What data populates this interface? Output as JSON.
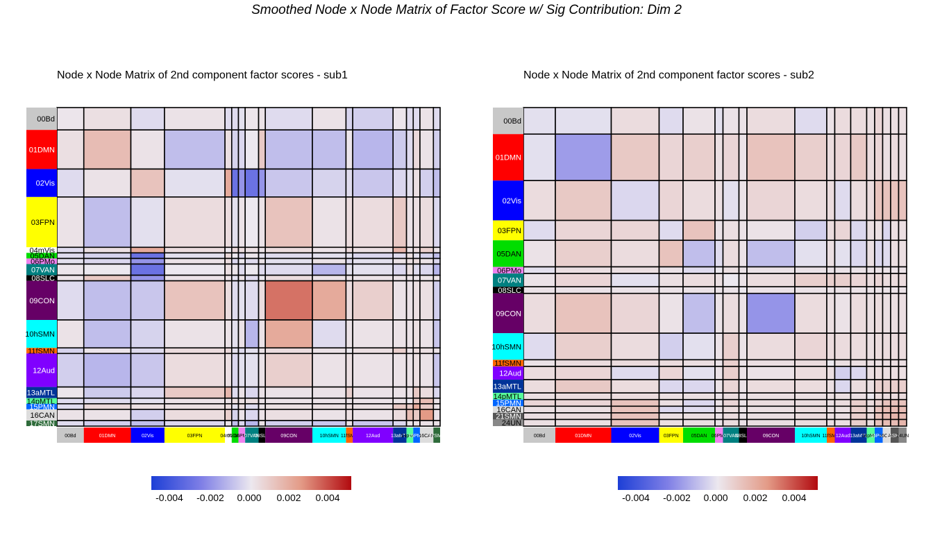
{
  "title": "Smoothed Node x Node Matrix of Factor Score w/ Sig Contribution: Dim 2",
  "colorbar": {
    "ticks": [
      "-0.004",
      "-0.002",
      "0.000",
      "0.002",
      "0.004"
    ],
    "tick_values": [
      -0.004,
      -0.002,
      0.0,
      0.002,
      0.004
    ],
    "range": [
      -0.005,
      0.005
    ],
    "colors": [
      "#1d3fd6",
      "#7f7fe6",
      "#ece8ef",
      "#e39a86",
      "#b20a0f"
    ]
  },
  "chart_data": [
    {
      "type": "heatmap",
      "title": "Node x Node Matrix of 2nd component factor scores - sub1",
      "communities": [
        {
          "label": "00Bd",
          "color": "#c8c8c8",
          "size": 4
        },
        {
          "label": "01DMN",
          "color": "#ff0000",
          "size": 7
        },
        {
          "label": "02Vis",
          "color": "#0000ff",
          "size": 5
        },
        {
          "label": "03FPN",
          "color": "#ffff00",
          "size": 9
        },
        {
          "label": "04mVis",
          "color": "#ffffff",
          "size": 1
        },
        {
          "label": "05DAN",
          "color": "#00dd00",
          "size": 1
        },
        {
          "label": "06PMo",
          "color": "#ee82ee",
          "size": 1
        },
        {
          "label": "07VAN",
          "color": "#008080",
          "size": 2
        },
        {
          "label": "08SLC",
          "color": "#000000",
          "size": 1
        },
        {
          "label": "09CON",
          "color": "#660066",
          "size": 7
        },
        {
          "label": "10hSMN",
          "color": "#00ffff",
          "size": 5
        },
        {
          "label": "11fSMN",
          "color": "#ff6600",
          "size": 1
        },
        {
          "label": "12Aud",
          "color": "#8000ff",
          "size": 6
        },
        {
          "label": "13aMTL",
          "color": "#003399",
          "size": 2
        },
        {
          "label": "14pMTL",
          "color": "#55ff99",
          "size": 1
        },
        {
          "label": "15PMN",
          "color": "#0066ff",
          "size": 1
        },
        {
          "label": "16CAN",
          "color": "#dddddd",
          "size": 2
        },
        {
          "label": "17SMN",
          "color": "#2e6b3a",
          "size": 1
        }
      ],
      "x_labels": [
        "00Bd",
        "01DMN",
        "02Vis",
        "03FPN",
        "04mVis",
        "05DAN",
        "06PMo",
        "07VAN",
        "08SLC",
        "09CON",
        "10hSMN",
        "11fSMN",
        "12Aud",
        "13aMTL",
        "14pMTL",
        "15PMN",
        "16CAN",
        "17SMN"
      ],
      "y_labels": [
        "00Bd",
        "01DMN",
        "02Vis",
        "03FPN",
        "04mVis",
        "05DAN",
        "06PMo",
        "07VAN",
        "08SLC",
        "09CON",
        "10hSMN",
        "11fSMN",
        "12Aud",
        "13aMTL",
        "14pMTL",
        "15PMN",
        "16CAN",
        "17SMN"
      ],
      "values": [
        [
          0.0001,
          0.0003,
          -0.0003,
          0.0002,
          -0.0003,
          -0.0003,
          -0.0002,
          0.0001,
          0.0002,
          -0.0003,
          0.0002,
          -0.0005,
          -0.0006,
          0.0001,
          -0.0003,
          -0.0003,
          0.0002,
          -0.0003
        ],
        [
          0.0003,
          0.0014,
          0.0002,
          -0.001,
          0.0003,
          -0.0005,
          -0.0004,
          0.0,
          0.001,
          -0.001,
          -0.001,
          0.0001,
          -0.0012,
          -0.0007,
          -0.0003,
          0.0005,
          0.0002,
          -0.0006
        ],
        [
          -0.0003,
          0.0002,
          0.0012,
          -0.0002,
          0.002,
          -0.003,
          -0.002,
          -0.003,
          -0.002,
          -0.0008,
          -0.0005,
          -0.0003,
          -0.0008,
          -0.0004,
          -0.0002,
          0.0003,
          -0.0006,
          -0.001
        ],
        [
          0.0002,
          -0.001,
          -0.0002,
          0.0004,
          0.0004,
          -0.0002,
          0.0002,
          0.0,
          0.0002,
          0.0012,
          0.0002,
          0.0004,
          0.0004,
          0.001,
          0.0002,
          0.0003,
          0.0004,
          -0.0004
        ],
        [
          -0.0003,
          0.0003,
          0.002,
          0.0004,
          0.0,
          0.0005,
          0.0004,
          0.0003,
          0.0002,
          0.0004,
          0.0002,
          0.0005,
          0.0003,
          0.0016,
          0.0002,
          0.0004,
          0.0008,
          0.0002
        ],
        [
          -0.0003,
          -0.0005,
          -0.003,
          -0.0002,
          0.0005,
          0.0,
          -0.0004,
          0.0001,
          -0.0002,
          -0.0003,
          -0.0002,
          -0.0002,
          -0.0004,
          -0.0003,
          0.0003,
          -0.0002,
          -0.0005,
          -0.001
        ],
        [
          -0.0002,
          -0.0004,
          -0.002,
          0.0002,
          0.0004,
          -0.0004,
          0.0,
          -0.0003,
          0.0002,
          -0.0002,
          0.0002,
          -0.0003,
          -0.0002,
          0.0002,
          0.0003,
          0.0004,
          0.0002,
          -0.0004
        ],
        [
          0.0001,
          0.0,
          -0.003,
          0.0,
          0.0003,
          0.0001,
          -0.0003,
          0.0,
          -0.0003,
          -0.0003,
          -0.0012,
          -0.0002,
          -0.0002,
          -0.0004,
          0.0003,
          -0.0003,
          -0.0004,
          -0.0012
        ],
        [
          0.0002,
          0.001,
          -0.002,
          0.0002,
          0.0002,
          -0.0002,
          0.0002,
          -0.0003,
          0.0,
          0.0004,
          0.0002,
          0.0002,
          0.0002,
          0.0002,
          0.0002,
          0.0002,
          0.0002,
          0.0002
        ],
        [
          -0.0003,
          -0.001,
          -0.0008,
          0.0012,
          0.0004,
          -0.0003,
          -0.0002,
          -0.0003,
          0.0004,
          0.0032,
          0.002,
          0.0004,
          0.0008,
          0.0002,
          0.0002,
          0.0003,
          0.0003,
          -0.0006
        ],
        [
          0.0002,
          -0.001,
          -0.0005,
          0.0002,
          0.0002,
          -0.0002,
          0.0002,
          -0.0012,
          0.0002,
          0.002,
          -0.0003,
          0.0002,
          0.0002,
          0.0002,
          0.0002,
          0.0003,
          0.0002,
          -0.0008
        ],
        [
          -0.0005,
          0.0001,
          -0.0003,
          0.0004,
          0.0005,
          -0.0002,
          -0.0003,
          -0.0002,
          0.0002,
          0.0004,
          0.0002,
          0.0,
          0.0003,
          0.0008,
          0.0002,
          0.0004,
          0.0003,
          0.0002
        ],
        [
          -0.0006,
          -0.0012,
          -0.0008,
          0.0004,
          0.0003,
          -0.0004,
          -0.0002,
          -0.0002,
          0.0002,
          0.0008,
          0.0002,
          0.0003,
          0.0002,
          0.0002,
          0.0002,
          0.0003,
          0.0002,
          -0.0008
        ],
        [
          0.0001,
          -0.0007,
          -0.0004,
          0.001,
          0.0016,
          -0.0003,
          0.0002,
          -0.0004,
          0.0002,
          0.0002,
          0.0002,
          0.0008,
          0.0002,
          0.0002,
          0.0002,
          0.001,
          0.0004,
          -0.0004
        ],
        [
          -0.0003,
          -0.0003,
          -0.0002,
          0.0002,
          0.0002,
          0.0003,
          0.0003,
          0.0003,
          0.0002,
          0.0002,
          0.0002,
          0.0002,
          0.0002,
          0.0002,
          0.0,
          0.001,
          0.0014,
          0.0002
        ],
        [
          -0.0003,
          0.0005,
          0.0003,
          0.0003,
          0.0004,
          -0.0002,
          0.0004,
          -0.0003,
          0.0002,
          0.0003,
          0.0003,
          0.0004,
          0.0003,
          0.001,
          0.001,
          0.002,
          0.001,
          0.0002
        ],
        [
          0.0002,
          0.0002,
          -0.0006,
          0.0004,
          0.0008,
          -0.0005,
          0.0002,
          -0.0004,
          0.0002,
          0.0003,
          0.0002,
          0.0003,
          0.0002,
          0.0004,
          0.0014,
          0.001,
          0.0025,
          0.0002
        ],
        [
          -0.0003,
          -0.0006,
          -0.001,
          -0.0004,
          0.0002,
          -0.001,
          -0.0004,
          -0.0012,
          0.0002,
          -0.0006,
          -0.0008,
          0.0002,
          -0.0008,
          -0.0004,
          0.0002,
          0.0002,
          0.0002,
          0.0002
        ]
      ]
    },
    {
      "type": "heatmap",
      "title": "Node x Node Matrix of 2nd component factor scores - sub2",
      "communities": [
        {
          "label": "00Bd",
          "color": "#c8c8c8",
          "size": 4
        },
        {
          "label": "01DMN",
          "color": "#ff0000",
          "size": 7
        },
        {
          "label": "02Vis",
          "color": "#0000ff",
          "size": 6
        },
        {
          "label": "03FPN",
          "color": "#ffff00",
          "size": 3
        },
        {
          "label": "05DAN",
          "color": "#00dd00",
          "size": 4
        },
        {
          "label": "06PMo",
          "color": "#ee82ee",
          "size": 1
        },
        {
          "label": "07VAN",
          "color": "#008080",
          "size": 2
        },
        {
          "label": "08SLC",
          "color": "#000000",
          "size": 1
        },
        {
          "label": "09CON",
          "color": "#660066",
          "size": 6
        },
        {
          "label": "10hSMN",
          "color": "#00ffff",
          "size": 4
        },
        {
          "label": "11fSMN",
          "color": "#ff6600",
          "size": 1
        },
        {
          "label": "12Aud",
          "color": "#8000ff",
          "size": 2
        },
        {
          "label": "13aMTL",
          "color": "#003399",
          "size": 2
        },
        {
          "label": "14pMTL",
          "color": "#55ff99",
          "size": 1
        },
        {
          "label": "15PMN",
          "color": "#0066ff",
          "size": 1
        },
        {
          "label": "16CAN",
          "color": "#dddddd",
          "size": 1
        },
        {
          "label": "21SMN",
          "color": "#555555",
          "size": 1
        },
        {
          "label": "24UN",
          "color": "#888888",
          "size": 1
        }
      ],
      "x_labels": [
        "00Bd",
        "01DMN",
        "02Vis",
        "03FPN",
        "05DAN",
        "06PMo",
        "07VAN",
        "08SLC",
        "09CON",
        "10hSMN",
        "11fSMN",
        "12Aud",
        "13aMTL",
        "14pMTL",
        "15PMN",
        "16CAN",
        "21SMN",
        "24UN"
      ],
      "y_labels": [
        "00Bd",
        "01DMN",
        "02Vis",
        "03FPN",
        "05DAN",
        "06PMo",
        "07VAN",
        "08SLC",
        "09CON",
        "10hSMN",
        "11fSMN",
        "12Aud",
        "13aMTL",
        "14pMTL",
        "15PMN",
        "16CAN",
        "21SMN",
        "24UN"
      ],
      "values": [
        [
          -0.0002,
          -0.0002,
          0.0004,
          -0.0003,
          0.0002,
          -0.0002,
          0.0002,
          0.0002,
          0.0004,
          -0.0003,
          0.0002,
          0.0004,
          0.0004,
          0.0003,
          0.0006,
          0.0003,
          0.0003,
          0.0003
        ],
        [
          -0.0002,
          -0.0018,
          0.001,
          0.0006,
          0.0008,
          0.0003,
          0.0006,
          0.0002,
          0.0012,
          0.0008,
          0.0004,
          0.0006,
          0.001,
          0.0004,
          0.0006,
          0.0003,
          0.0004,
          0.0003
        ],
        [
          0.0004,
          0.001,
          -0.0004,
          0.0006,
          0.0004,
          0.0003,
          -0.0002,
          0.0002,
          0.0006,
          0.0004,
          0.0004,
          -0.0003,
          0.0004,
          0.0004,
          0.0012,
          0.0012,
          0.0012,
          0.0012
        ],
        [
          -0.0003,
          0.0006,
          0.0006,
          -0.0003,
          0.0012,
          0.0002,
          0.0003,
          0.0002,
          0.0002,
          -0.0006,
          0.0004,
          0.0006,
          -0.0004,
          0.0003,
          0.0003,
          -0.0004,
          0.0003,
          0.0003
        ],
        [
          0.0002,
          0.0008,
          0.0004,
          0.0012,
          -0.001,
          -0.0003,
          0.0004,
          0.0002,
          -0.001,
          -0.0002,
          0.0003,
          -0.0002,
          -0.0004,
          0.0003,
          -0.0004,
          -0.0003,
          0.0003,
          0.0003
        ],
        [
          -0.0002,
          0.0003,
          0.0003,
          0.0002,
          -0.0003,
          0.0,
          0.0003,
          0.0002,
          0.0002,
          0.0002,
          0.0002,
          0.0002,
          0.0002,
          0.0002,
          0.0002,
          0.0002,
          0.0002,
          0.0002
        ],
        [
          0.0002,
          0.0006,
          -0.0002,
          0.0003,
          0.0004,
          0.0003,
          0.0,
          0.0002,
          0.0004,
          0.0008,
          0.0008,
          0.0008,
          0.0006,
          0.0004,
          0.0006,
          0.0004,
          0.0004,
          0.0004
        ],
        [
          0.0002,
          0.0002,
          0.0002,
          0.0002,
          0.0002,
          0.0002,
          0.0002,
          0.0,
          0.0002,
          0.0002,
          0.0002,
          0.0002,
          0.0002,
          0.0002,
          0.0002,
          0.0002,
          0.0002,
          0.0002
        ],
        [
          0.0004,
          0.0012,
          0.0006,
          0.0002,
          -0.001,
          0.0002,
          0.0004,
          0.0002,
          -0.002,
          0.0004,
          0.0003,
          0.0002,
          0.0004,
          0.0003,
          0.0004,
          0.0003,
          0.0003,
          0.0003
        ],
        [
          -0.0003,
          0.0008,
          0.0004,
          -0.0006,
          -0.0002,
          0.0002,
          0.0008,
          0.0002,
          0.0004,
          0.0006,
          0.0004,
          0.0004,
          0.0004,
          0.0003,
          0.0004,
          0.0004,
          0.0004,
          0.0004
        ],
        [
          0.0002,
          0.0004,
          0.0004,
          0.0004,
          0.0003,
          0.0002,
          0.0008,
          0.0002,
          0.0003,
          0.0004,
          0.0,
          0.0003,
          0.0003,
          0.0003,
          0.0003,
          0.0003,
          0.0003,
          0.0003
        ],
        [
          0.0004,
          0.0006,
          -0.0003,
          0.0006,
          -0.0002,
          0.0002,
          0.0008,
          0.0002,
          0.0002,
          0.0004,
          0.0003,
          -0.0006,
          -0.0004,
          0.0003,
          0.0004,
          0.0003,
          0.0003,
          0.0003
        ],
        [
          0.0004,
          0.001,
          0.0004,
          -0.0004,
          -0.0004,
          0.0002,
          0.0006,
          0.0002,
          0.0004,
          0.0004,
          0.0003,
          -0.0004,
          0.0004,
          0.0003,
          0.0008,
          0.0008,
          0.0008,
          0.0008
        ],
        [
          0.0003,
          0.0004,
          0.0004,
          0.0003,
          0.0003,
          0.0002,
          0.0004,
          0.0002,
          0.0003,
          0.0003,
          0.0003,
          0.0003,
          0.0003,
          0.0,
          0.0004,
          0.0004,
          0.0004,
          0.0004
        ],
        [
          0.0006,
          0.0006,
          0.0012,
          0.0003,
          -0.0004,
          0.0002,
          0.0006,
          0.0002,
          0.0004,
          0.0004,
          0.0003,
          0.0004,
          0.0008,
          0.0004,
          0.0008,
          0.0012,
          0.0012,
          0.0012
        ],
        [
          0.0003,
          0.0003,
          0.0012,
          -0.0004,
          -0.0003,
          0.0002,
          0.0004,
          0.0002,
          0.0003,
          0.0004,
          0.0003,
          0.0003,
          0.0008,
          0.0004,
          0.0012,
          0.0014,
          0.0014,
          0.0014
        ],
        [
          0.0003,
          0.0004,
          0.0012,
          0.0003,
          0.0003,
          0.0002,
          0.0004,
          0.0002,
          0.0003,
          0.0004,
          0.0003,
          0.0003,
          0.0008,
          0.0004,
          0.0012,
          0.0014,
          0.0016,
          0.0014
        ],
        [
          0.0003,
          0.0003,
          0.0012,
          0.0003,
          0.0003,
          0.0002,
          0.0004,
          0.0002,
          0.0003,
          0.0004,
          0.0003,
          0.0003,
          0.0008,
          0.0004,
          0.0012,
          0.0014,
          0.0014,
          0.0016
        ]
      ]
    }
  ]
}
